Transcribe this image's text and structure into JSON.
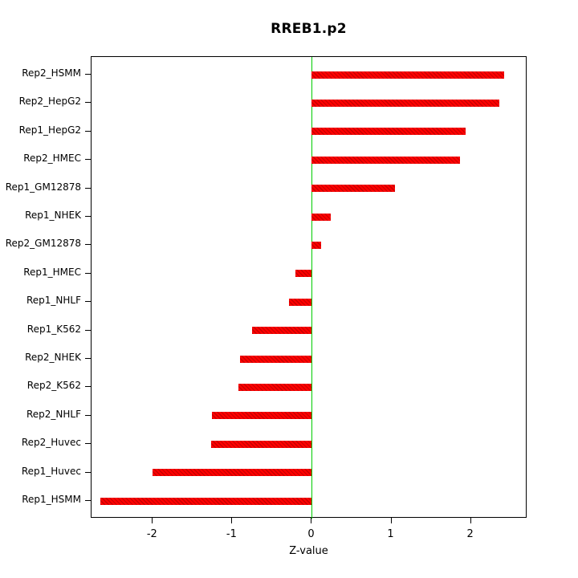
{
  "chart_data": {
    "type": "bar",
    "orientation": "horizontal",
    "title": "RREB1.p2",
    "xlabel": "Z-value",
    "ylabel": "",
    "categories": [
      "Rep2_HSMM",
      "Rep2_HepG2",
      "Rep1_HepG2",
      "Rep2_HMEC",
      "Rep1_GM12878",
      "Rep1_NHEK",
      "Rep2_GM12878",
      "Rep1_HMEC",
      "Rep1_NHLF",
      "Rep1_K562",
      "Rep2_NHEK",
      "Rep2_K562",
      "Rep2_NHLF",
      "Rep2_Huvec",
      "Rep1_Huvec",
      "Rep1_HSMM"
    ],
    "values": [
      2.42,
      2.36,
      1.93,
      1.86,
      1.04,
      0.24,
      0.12,
      -0.21,
      -0.29,
      -0.75,
      -0.9,
      -0.92,
      -1.26,
      -1.27,
      -2.0,
      -2.66
    ],
    "xlim": [
      -2.77,
      2.71
    ],
    "x_ticks": [
      -2,
      -1,
      0,
      1,
      2
    ],
    "grid": false,
    "legend": "none",
    "bar_color": "#ff0000",
    "bar_pattern_color": "#960000",
    "zero_line_color": "#00cc00",
    "axis_color": "#000000"
  }
}
